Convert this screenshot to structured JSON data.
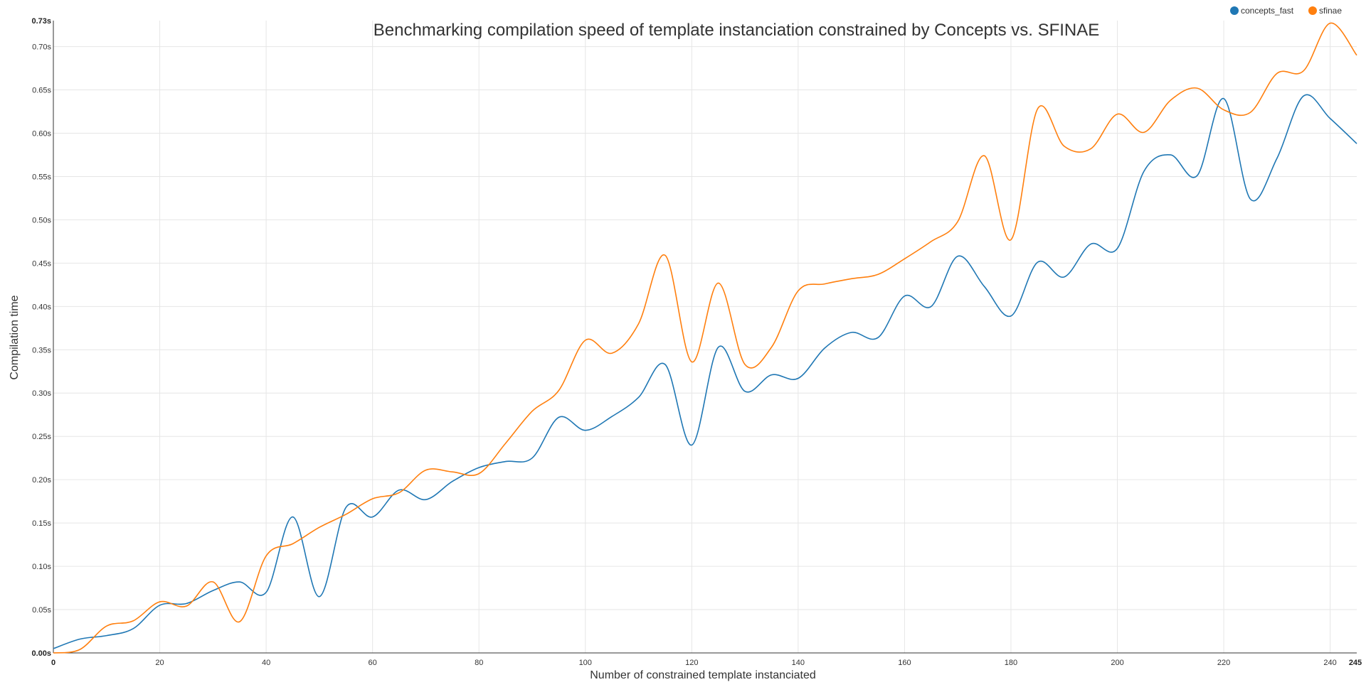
{
  "chart_data": {
    "type": "line",
    "title": "Benchmarking compilation speed of template instanciation constrained by Concepts vs. SFINAE",
    "xlabel": "Number of constrained template instanciated",
    "ylabel": "Compilation time",
    "xlim": [
      0,
      245
    ],
    "ylim": [
      0,
      0.73
    ],
    "x_ticks": [
      "0",
      "20",
      "40",
      "60",
      "80",
      "100",
      "120",
      "140",
      "160",
      "180",
      "200",
      "220",
      "240",
      "245"
    ],
    "y_ticks": [
      "0.00s",
      "0.05s",
      "0.10s",
      "0.15s",
      "0.20s",
      "0.25s",
      "0.30s",
      "0.35s",
      "0.40s",
      "0.45s",
      "0.50s",
      "0.55s",
      "0.60s",
      "0.65s",
      "0.70s",
      "0.73s"
    ],
    "grid": true,
    "legend_position": "top-right",
    "x": [
      0,
      5,
      10,
      15,
      20,
      25,
      30,
      35,
      40,
      45,
      50,
      55,
      60,
      65,
      70,
      75,
      80,
      85,
      90,
      95,
      100,
      105,
      110,
      115,
      120,
      125,
      130,
      135,
      140,
      145,
      150,
      155,
      160,
      165,
      170,
      175,
      180,
      185,
      190,
      195,
      200,
      205,
      210,
      215,
      220,
      225,
      230,
      235,
      240,
      245
    ],
    "series": [
      {
        "name": "concepts_fast",
        "color": "#1f77b4",
        "values": [
          0.005,
          0.016,
          0.02,
          0.028,
          0.055,
          0.057,
          0.072,
          0.082,
          0.07,
          0.157,
          0.065,
          0.168,
          0.157,
          0.188,
          0.177,
          0.198,
          0.214,
          0.221,
          0.225,
          0.272,
          0.257,
          0.273,
          0.295,
          0.333,
          0.24,
          0.353,
          0.302,
          0.321,
          0.317,
          0.352,
          0.37,
          0.364,
          0.412,
          0.4,
          0.458,
          0.423,
          0.389,
          0.451,
          0.434,
          0.472,
          0.467,
          0.556,
          0.575,
          0.551,
          0.64,
          0.524,
          0.571,
          0.643,
          0.617,
          0.588
        ]
      },
      {
        "name": "sfinae",
        "color": "#ff7f0e",
        "values": [
          0.0,
          0.004,
          0.031,
          0.037,
          0.059,
          0.054,
          0.082,
          0.036,
          0.112,
          0.126,
          0.145,
          0.16,
          0.178,
          0.185,
          0.211,
          0.209,
          0.207,
          0.242,
          0.279,
          0.303,
          0.361,
          0.346,
          0.38,
          0.459,
          0.336,
          0.427,
          0.333,
          0.353,
          0.418,
          0.426,
          0.432,
          0.437,
          0.455,
          0.475,
          0.498,
          0.574,
          0.477,
          0.628,
          0.585,
          0.582,
          0.622,
          0.601,
          0.638,
          0.652,
          0.627,
          0.624,
          0.669,
          0.672,
          0.727,
          0.69
        ]
      }
    ]
  }
}
